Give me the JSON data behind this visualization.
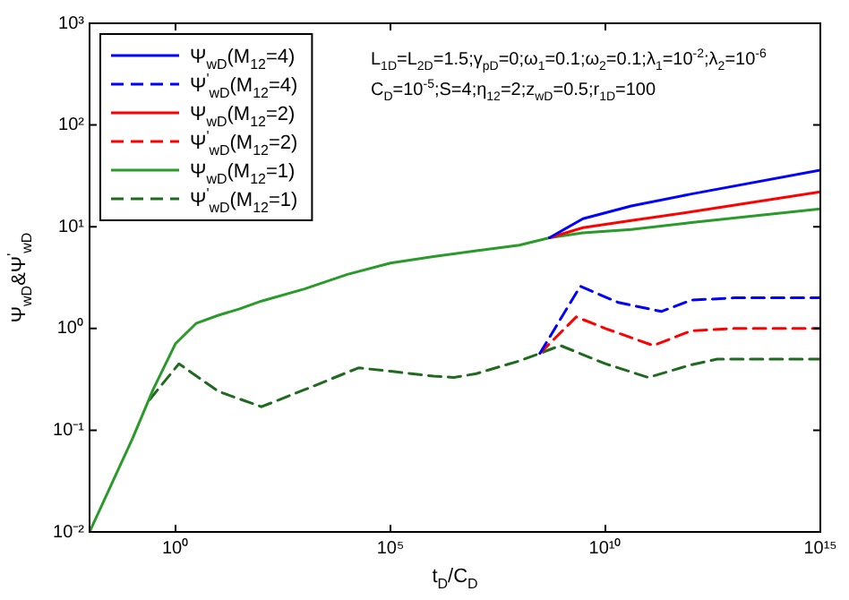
{
  "chart_data": {
    "type": "line",
    "xlabel": "t$_{D}$/C$_{D}$",
    "ylabel": "Ψ$_{wD}$&Ψ$^{'}$$_{wD}$",
    "annotations": [
      "L$_{1D}$=L$_{2D}$=1.5;γ$_{pD}$=0;ω$_{1}$=0.1;ω$_{2}$=0.1;λ$_{1}$=10$^{-2}$;λ$_{2}$=10$^{-6}$",
      "C$_{D}$=10$^{-5}$;S=4;η$_{12}$=2;z$_{wD}$=0.5;r$_{1D}$=100"
    ],
    "log": "xy",
    "grid": false,
    "legend": "top left",
    "marker": "none",
    "xlim": [
      0.01,
      1000000000000000.0
    ],
    "xticks": [
      {
        "value": 1,
        "label": "10⁰"
      },
      {
        "value": 100000.0,
        "label": "10⁵"
      },
      {
        "value": 10000000000.0,
        "label": "10¹⁰"
      },
      {
        "value": 1000000000000000.0,
        "label": "10¹⁵"
      }
    ],
    "ylim": [
      0.01,
      1000
    ],
    "yticks": [
      {
        "value": 0.01,
        "label": "10⁻²"
      },
      {
        "value": 0.1,
        "label": "10⁻¹"
      },
      {
        "value": 1,
        "label": "10⁰"
      },
      {
        "value": 10,
        "label": "10¹"
      },
      {
        "value": 100,
        "label": "10²"
      },
      {
        "value": 1000,
        "label": "10³"
      }
    ],
    "series": [
      {
        "name": "Ψ$_{wD}$(M$_{12}$=4)",
        "color": "#0000ff",
        "line_style": "solid",
        "x": [
          500000000.0,
          3000000000.0,
          40000000000.0,
          1000000000000.0,
          1000000000000000.0
        ],
        "values": [
          7.8,
          12,
          16,
          21,
          36
        ]
      },
      {
        "name": "Ψ$^{'}$$_{wD}$(M$_{12}$=4)",
        "color": "#0000ff",
        "line_style": "dashed",
        "x": [
          300000000.0,
          2600000000.0,
          20000000000.0,
          200000000000.0,
          1000000000000.0,
          10000000000000.0,
          1000000000000000.0
        ],
        "values": [
          0.57,
          2.6,
          1.8,
          1.47,
          1.9,
          2.0,
          2.0
        ]
      },
      {
        "name": "Ψ$_{wD}$(M$_{12}$=2)",
        "color": "#ff0000",
        "line_style": "solid",
        "x": [
          500000000.0,
          3000000000.0,
          40000000000.0,
          1000000000000.0,
          1000000000000000.0
        ],
        "values": [
          7.8,
          9.8,
          11.5,
          14,
          22
        ]
      },
      {
        "name": "Ψ$^{'}$$_{wD}$(M$_{12}$=2)",
        "color": "#ff0000",
        "line_style": "dashed",
        "x": [
          300000000.0,
          2100000000.0,
          10000000000.0,
          130000000000.0,
          1000000000000.0,
          10000000000000.0,
          1000000000000000.0
        ],
        "values": [
          0.57,
          1.3,
          1.0,
          0.68,
          0.95,
          1.0,
          1.0
        ]
      },
      {
        "name": "Ψ$_{wD}$(M$_{12}$=1)",
        "color": "#2a9a2a",
        "line_style": "solid",
        "x": [
          0.01,
          0.1,
          0.3,
          1,
          3,
          10,
          30,
          100,
          1000,
          10000.0,
          100000.0,
          1000000.0,
          10000000.0,
          100000000.0,
          500000000.0,
          3000000000.0,
          40000000000.0,
          1000000000000.0,
          1000000000000000.0
        ],
        "values": [
          0.01,
          0.083,
          0.25,
          0.71,
          1.12,
          1.35,
          1.55,
          1.86,
          2.45,
          3.4,
          4.4,
          5.1,
          5.8,
          6.6,
          7.8,
          8.7,
          9.4,
          11,
          15
        ]
      },
      {
        "name": "Ψ$^{'}$$_{wD}$(M$_{12}$=1)",
        "color": "#1f6a1f",
        "line_style": "dashed",
        "x": [
          0.25,
          1.2,
          10,
          100,
          1000,
          18000.0,
          100000.0,
          1000000.0,
          3000000.0,
          10000000.0,
          100000000.0,
          300000000.0,
          900000000.0,
          10000000000.0,
          100000000000.0,
          1000000000000.0,
          4000000000000.0,
          1000000000000000.0
        ],
        "values": [
          0.2,
          0.45,
          0.24,
          0.17,
          0.25,
          0.41,
          0.38,
          0.34,
          0.33,
          0.36,
          0.48,
          0.57,
          0.68,
          0.45,
          0.33,
          0.44,
          0.5,
          0.5
        ]
      }
    ]
  }
}
